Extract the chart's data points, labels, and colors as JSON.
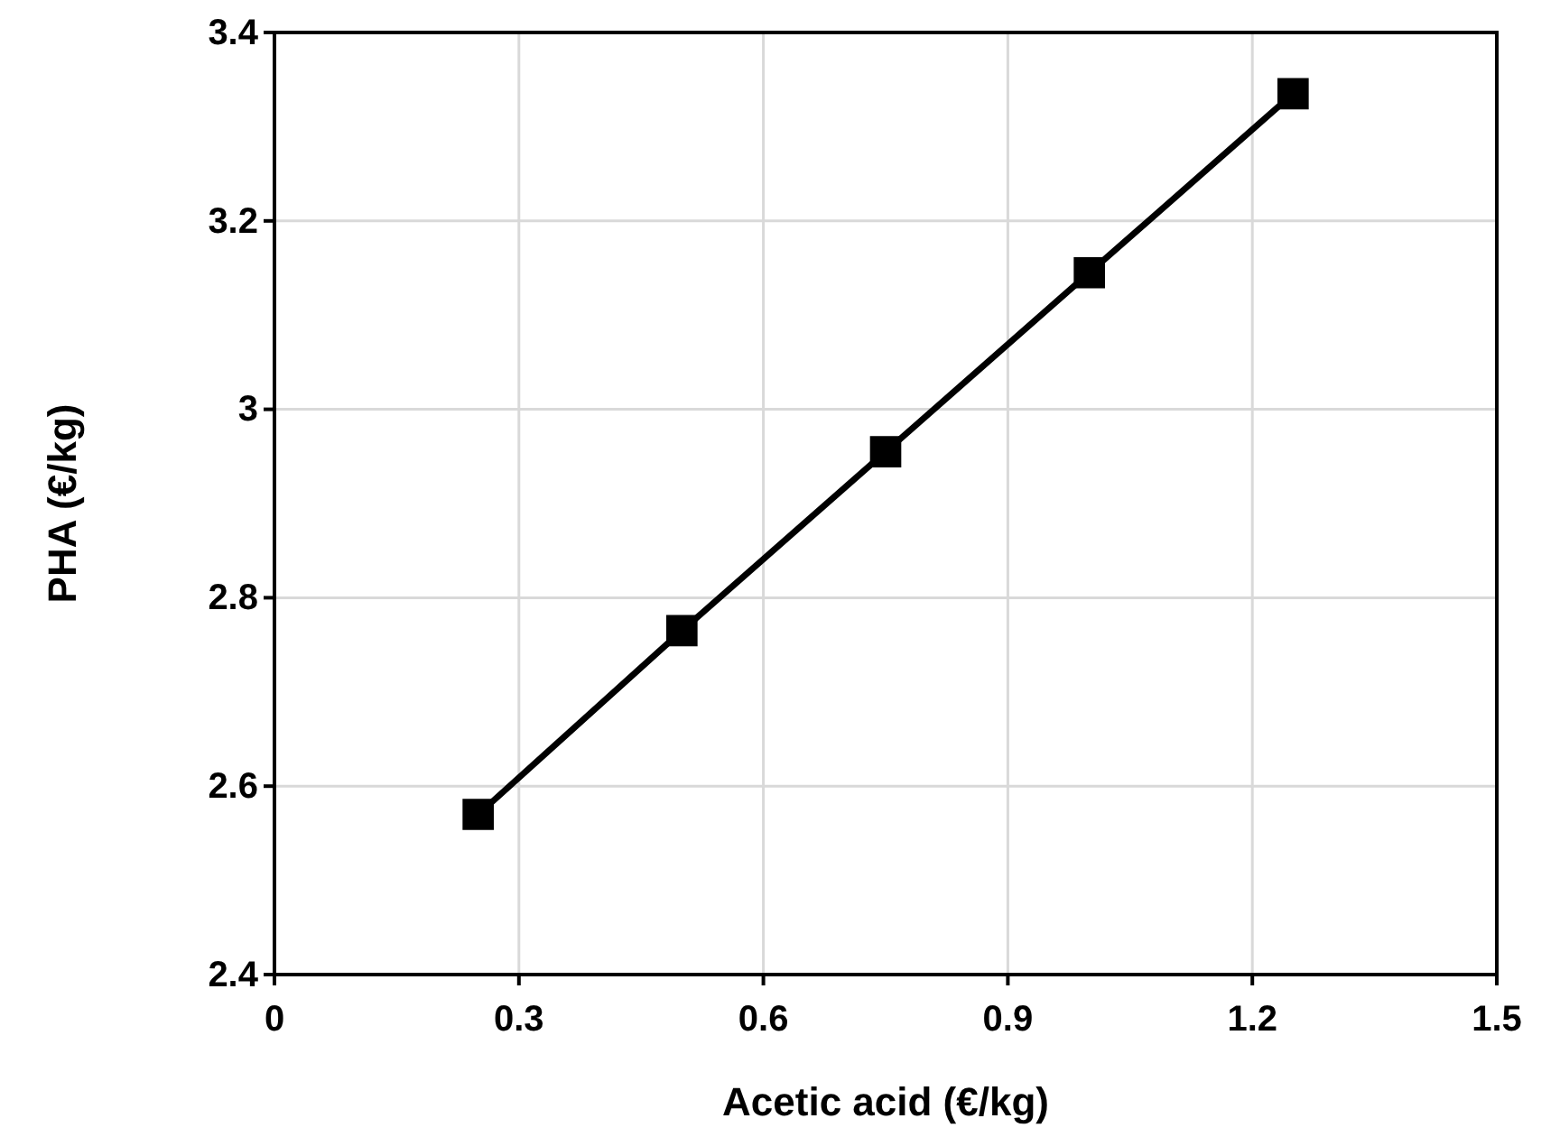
{
  "chart_data": {
    "type": "line",
    "xlabel": "Acetic acid (€/kg)",
    "ylabel": "PHA (€/kg)",
    "x": [
      0.25,
      0.5,
      0.75,
      1.0,
      1.25
    ],
    "series": [
      {
        "color": "#000000",
        "values": [
          2.57,
          2.765,
          2.955,
          3.145,
          3.335
        ]
      }
    ],
    "xlim": [
      0,
      1.5
    ],
    "xticks": [
      0,
      0.3,
      0.6,
      0.9,
      1.2,
      1.5
    ],
    "ylim": [
      2.4,
      3.4
    ],
    "yticks": [
      2.4,
      2.6,
      2.8,
      3,
      3.2,
      3.4
    ],
    "grid": true,
    "marker": "square",
    "line_style": "solid"
  }
}
